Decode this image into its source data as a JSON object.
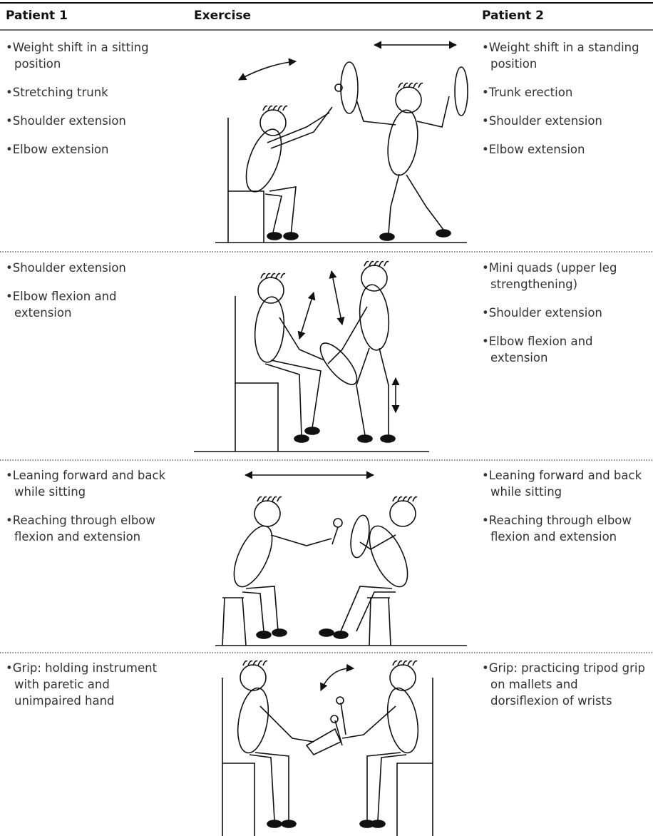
{
  "header": {
    "patient1": "Patient 1",
    "exercise": "Exercise",
    "patient2": "Patient 2"
  },
  "rows": [
    {
      "patient1": [
        "Weight shift in a sitting position",
        "Stretching trunk",
        "Shoulder extension",
        "Elbow extension"
      ],
      "patient2": [
        "Weight shift in a standing position",
        "Trunk erection",
        "Shoulder extension",
        "Elbow extension"
      ]
    },
    {
      "patient1": [
        "Shoulder extension",
        "Elbow flexion and extension"
      ],
      "patient2": [
        "Mini quads (upper leg strengthening)",
        "Shoulder extension",
        "Elbow flexion and extension"
      ]
    },
    {
      "patient1": [
        "Leaning forward and back while sitting",
        "Reaching through elbow flexion and extension"
      ],
      "patient2": [
        "Leaning forward and back while sitting",
        "Reaching through elbow flexion and extension"
      ]
    },
    {
      "patient1": [
        "Grip: holding instrument with paretic and unimpaired hand"
      ],
      "patient2": [
        "Grip: practicing tripod grip on mallets and dorsiflexion of wrists"
      ]
    }
  ]
}
